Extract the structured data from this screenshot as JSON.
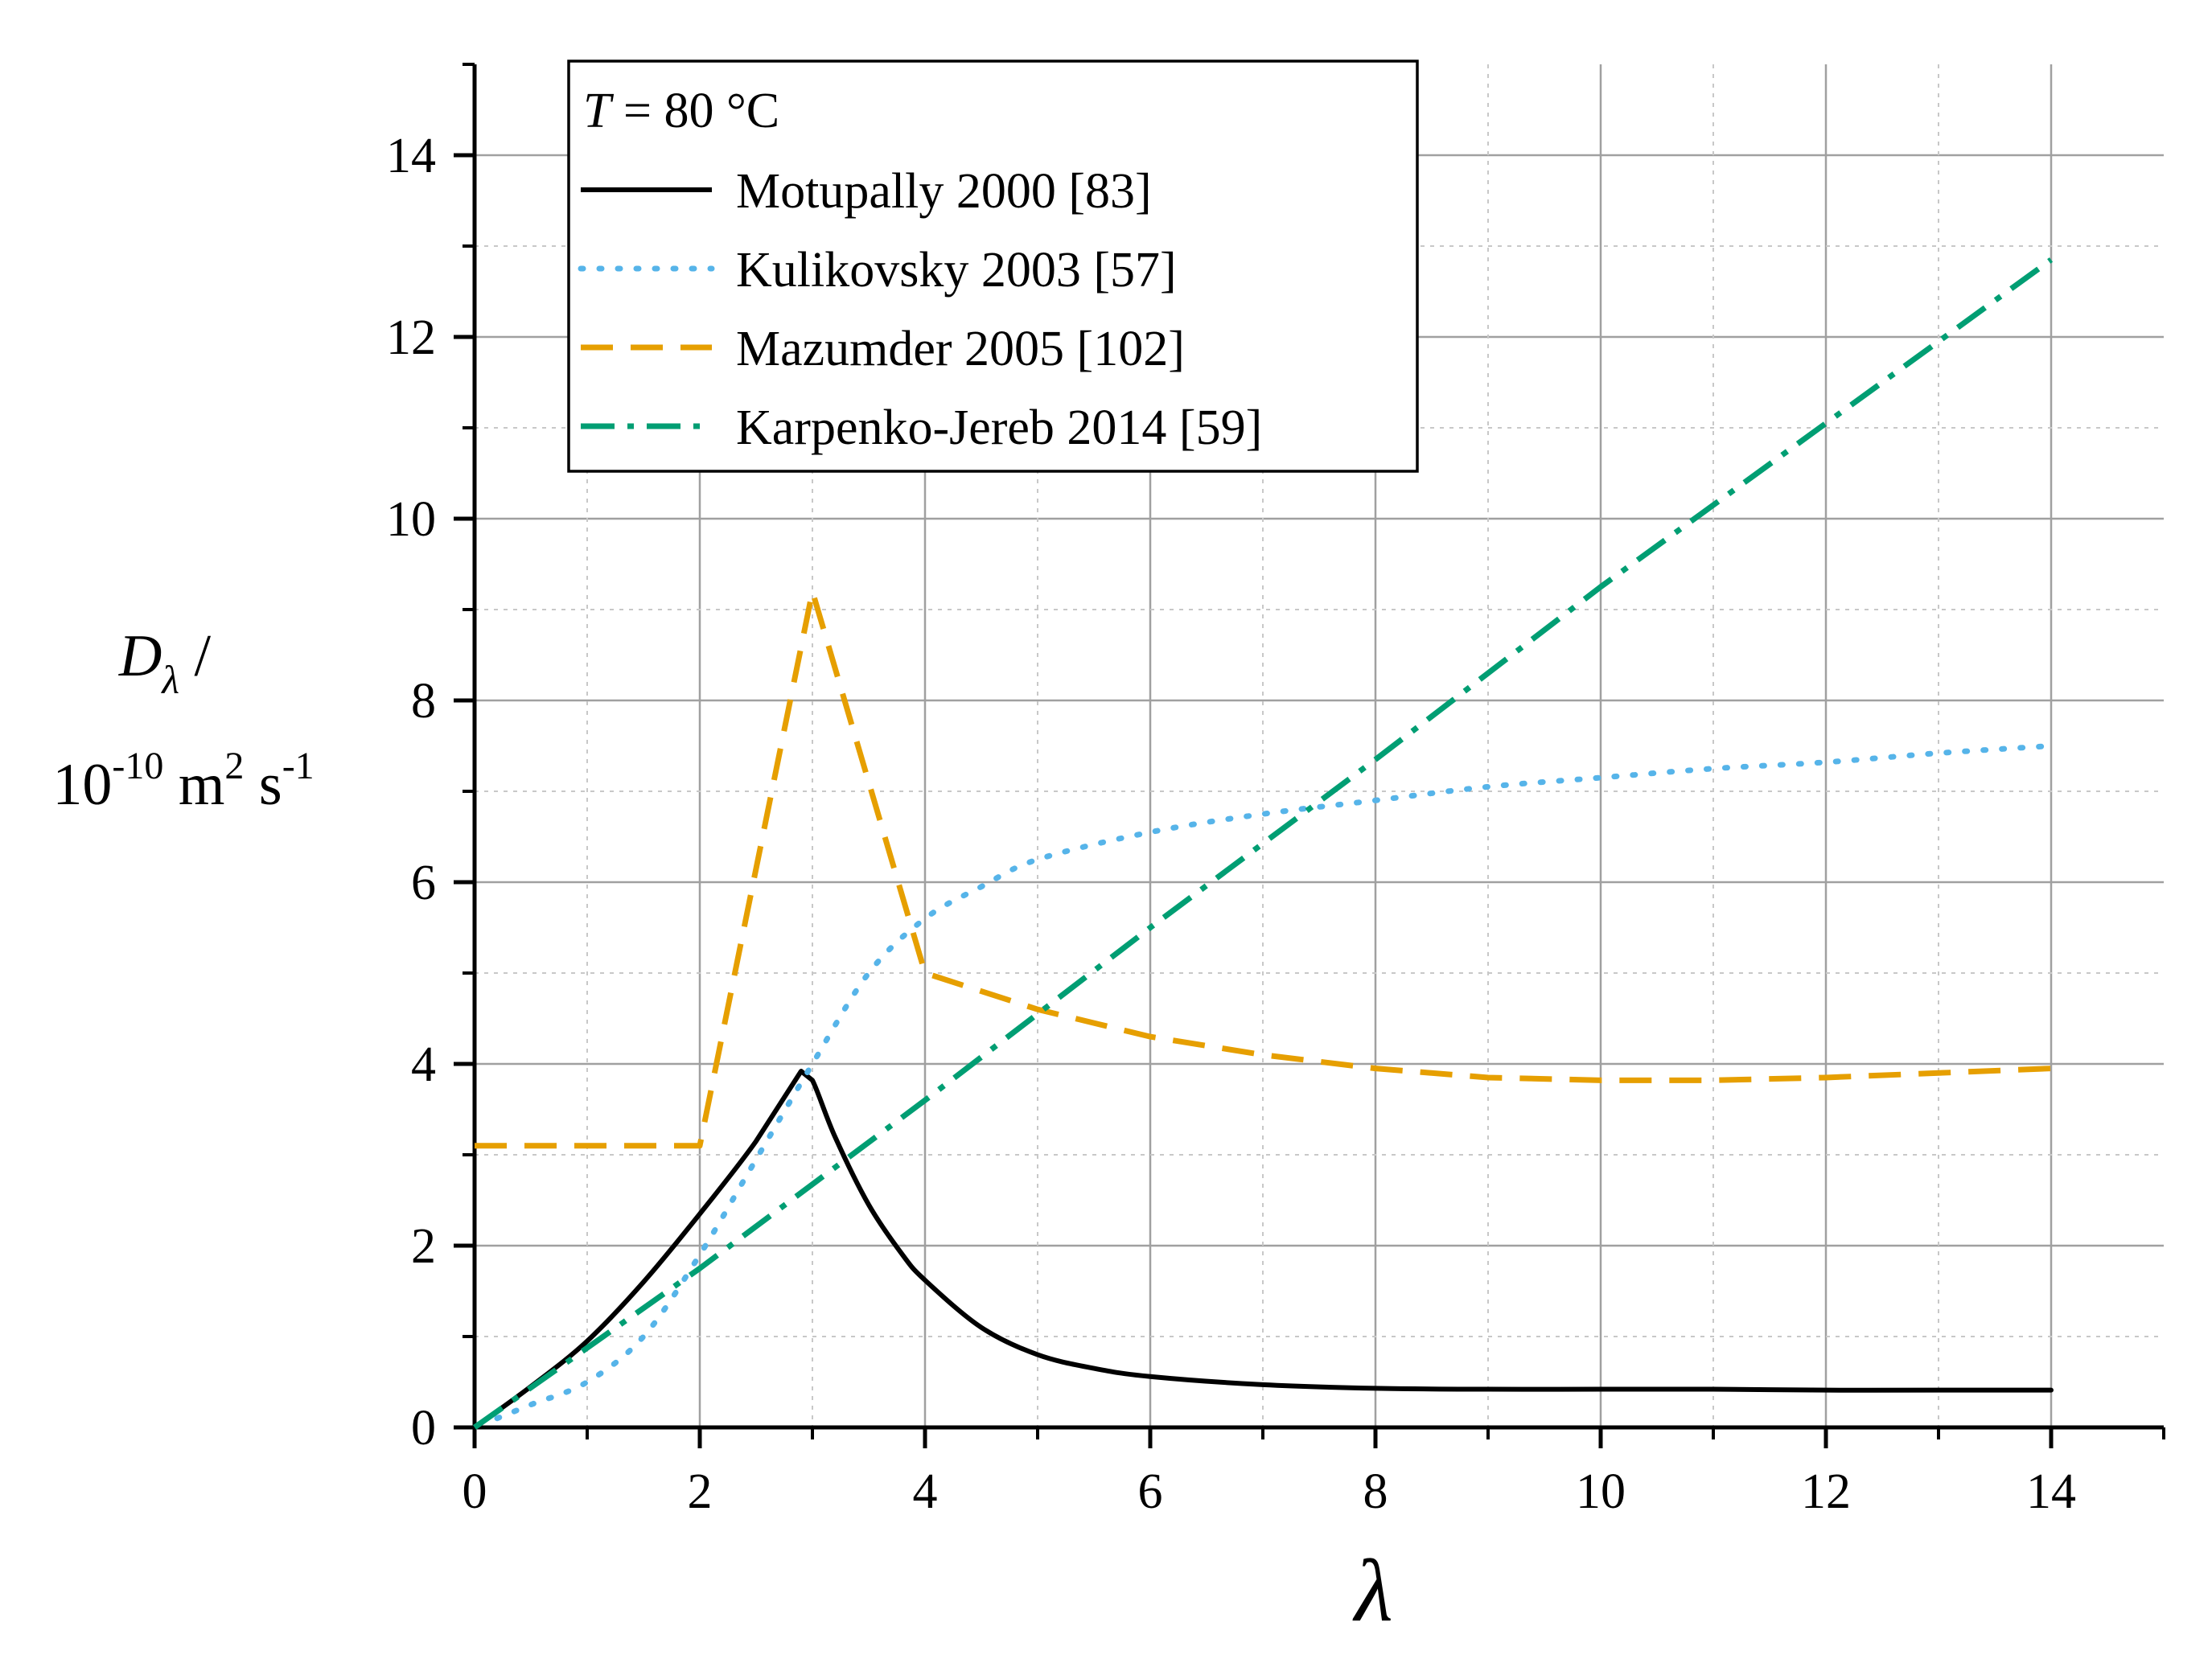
{
  "chart_data": {
    "type": "line",
    "xlabel": "λ",
    "ylabel_line1_sym": "D",
    "ylabel_line1_sub": "λ",
    "ylabel_line1_rest": " /",
    "ylabel_line2_base": "10",
    "ylabel_line2_exp": "-10",
    "ylabel_line2_unit1": " m",
    "ylabel_line2_exp2": "2",
    "ylabel_line2_unit2": " s",
    "ylabel_line2_exp3": "-1",
    "xlim": [
      0,
      15
    ],
    "ylim": [
      0,
      15
    ],
    "xticks": [
      0,
      2,
      4,
      6,
      8,
      10,
      12,
      14
    ],
    "yticks": [
      0,
      2,
      4,
      6,
      8,
      10,
      12,
      14
    ],
    "grid": true,
    "legend": {
      "placement": "top-left",
      "title_sym": "T",
      "title_rest": " = 80 °C"
    },
    "series": [
      {
        "name": "Motupally 2000 [83]",
        "style": "solid",
        "color": "#000000",
        "x": [
          0,
          0.5,
          1,
          1.5,
          2,
          2.5,
          2.9,
          3.0,
          3.2,
          3.5,
          3.8,
          4,
          4.5,
          5,
          5.5,
          6,
          7,
          8,
          9,
          10,
          11,
          12,
          13,
          14
        ],
        "y": [
          0,
          0.45,
          0.95,
          1.6,
          2.35,
          3.15,
          3.92,
          3.82,
          3.2,
          2.45,
          1.9,
          1.62,
          1.1,
          0.8,
          0.65,
          0.56,
          0.47,
          0.43,
          0.42,
          0.42,
          0.42,
          0.41,
          0.41,
          0.41
        ]
      },
      {
        "name": "Kulikovsky 2003 [57]",
        "style": "dotted",
        "color": "#56B4E9",
        "x": [
          0.2,
          0.5,
          1,
          1.5,
          2,
          2.5,
          3,
          3.5,
          4,
          4.5,
          5,
          6,
          7,
          8,
          9,
          10,
          11,
          12,
          13,
          14
        ],
        "y": [
          0.1,
          0.25,
          0.5,
          1.0,
          1.9,
          2.95,
          4.0,
          5.0,
          5.6,
          5.95,
          6.25,
          6.55,
          6.75,
          6.9,
          7.05,
          7.15,
          7.25,
          7.32,
          7.42,
          7.5
        ]
      },
      {
        "name": "Mazumder 2005 [102]",
        "style": "dashed",
        "color": "#E69F00",
        "x": [
          0,
          2,
          3,
          4,
          5,
          6,
          7,
          8,
          9,
          10,
          11,
          12,
          13,
          14
        ],
        "y": [
          3.1,
          3.1,
          9.2,
          5.0,
          4.6,
          4.3,
          4.1,
          3.95,
          3.85,
          3.82,
          3.82,
          3.85,
          3.9,
          3.95
        ]
      },
      {
        "name": "Karpenko-Jereb 2014 [59]",
        "style": "dashdot",
        "color": "#009E73",
        "x": [
          0,
          2,
          4,
          6,
          8,
          10,
          12,
          14
        ],
        "y": [
          0,
          1.75,
          3.6,
          5.5,
          7.35,
          9.25,
          11.05,
          12.85
        ]
      }
    ]
  }
}
